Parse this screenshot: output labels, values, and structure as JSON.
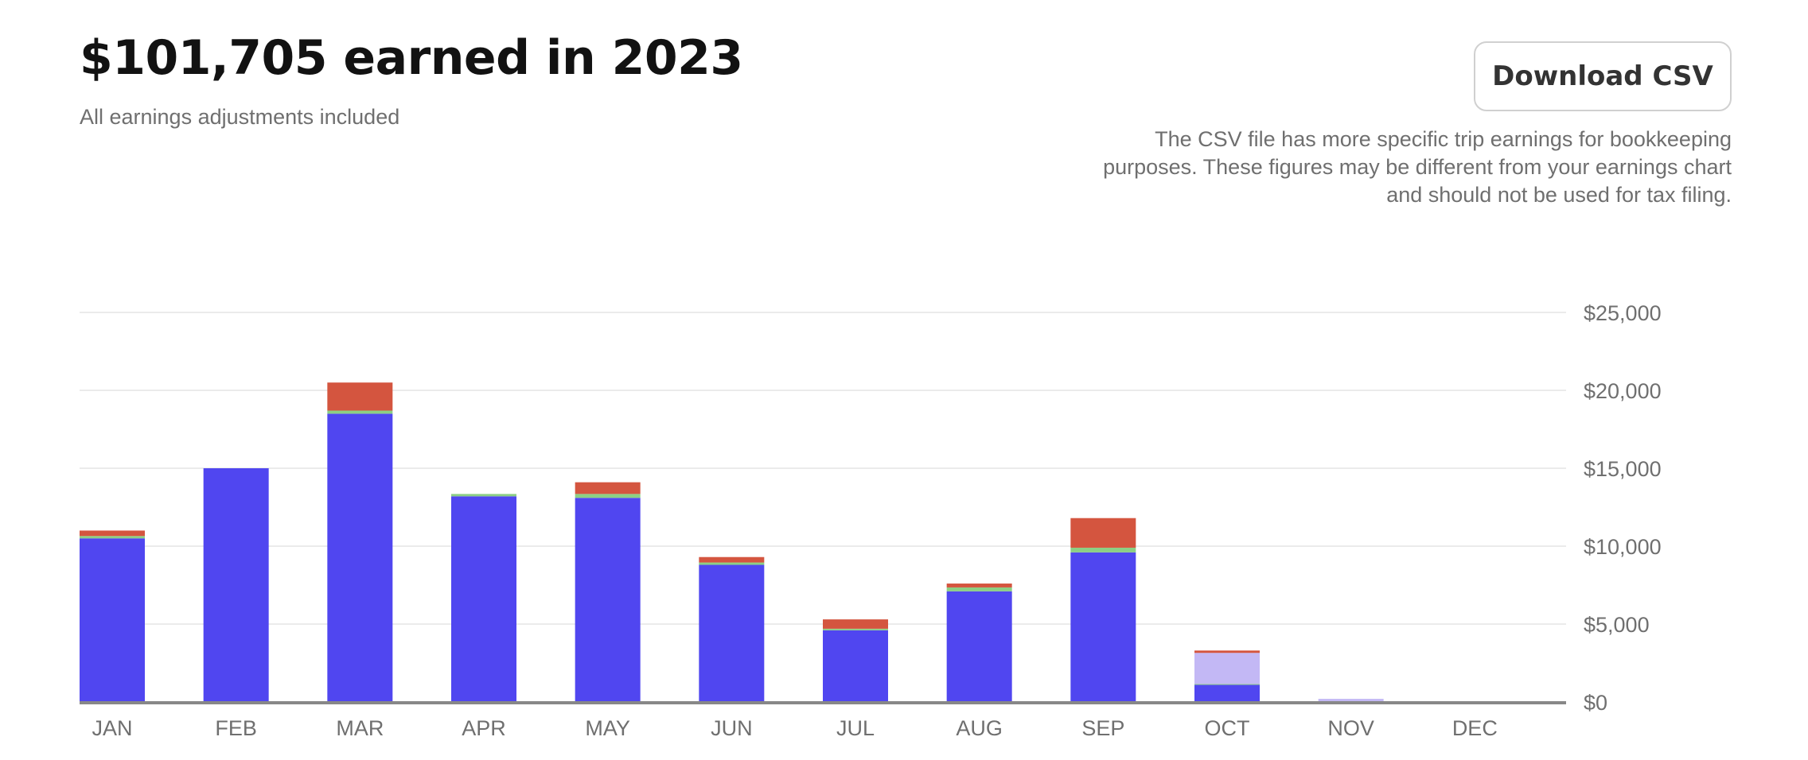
{
  "header": {
    "title": "$101,705 earned in 2023",
    "subtitle": "All earnings adjustments included"
  },
  "download": {
    "button_label": "Download CSV",
    "note_lines": [
      "The CSV file has more specific trip earnings for bookkeeping",
      "purposes. These figures may be different from your earnings chart",
      "and should not be used for tax filing."
    ]
  },
  "colors": {
    "trips": "#5046f0",
    "green": "#8ccf84",
    "red": "#d4553f",
    "pending": "#c3b8f5",
    "grid": "#ebebeb",
    "baseline": "#888888"
  },
  "chart_data": {
    "type": "bar",
    "stacked": true,
    "categories": [
      "JAN",
      "FEB",
      "MAR",
      "APR",
      "MAY",
      "JUN",
      "JUL",
      "AUG",
      "SEP",
      "OCT",
      "NOV",
      "DEC"
    ],
    "series": [
      {
        "color_key": "trips",
        "values": [
          10500,
          15000,
          18500,
          13200,
          13100,
          8800,
          4600,
          7100,
          9600,
          1100,
          0,
          0
        ]
      },
      {
        "color_key": "green",
        "values": [
          150,
          0,
          200,
          150,
          250,
          150,
          100,
          250,
          300,
          50,
          0,
          0
        ]
      },
      {
        "color_key": "pending",
        "values": [
          0,
          0,
          0,
          0,
          0,
          0,
          0,
          0,
          0,
          2000,
          200,
          0
        ]
      },
      {
        "color_key": "red",
        "values": [
          350,
          0,
          1800,
          0,
          750,
          350,
          600,
          250,
          1900,
          150,
          0,
          0
        ]
      }
    ],
    "ylim": [
      0,
      25000
    ],
    "yticks": [
      0,
      5000,
      10000,
      15000,
      20000,
      25000
    ],
    "ytick_labels": [
      "$0",
      "$5,000",
      "$10,000",
      "$15,000",
      "$20,000",
      "$25,000"
    ],
    "grid": true,
    "y_axis_position": "right"
  }
}
